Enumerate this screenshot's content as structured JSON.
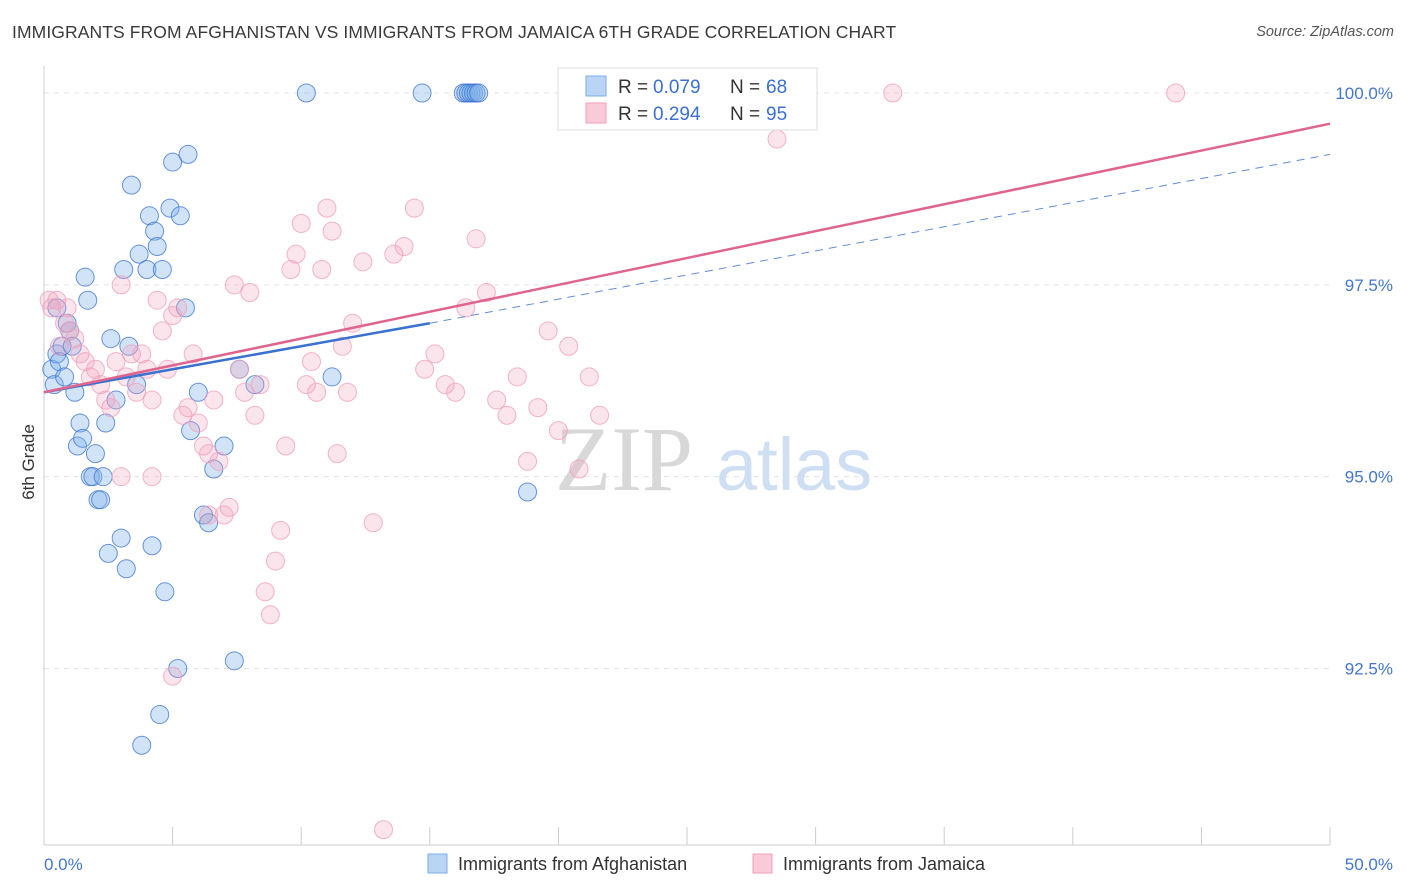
{
  "title": "IMMIGRANTS FROM AFGHANISTAN VS IMMIGRANTS FROM JAMAICA 6TH GRADE CORRELATION CHART",
  "source": "Source: ZipAtlas.com",
  "watermark": {
    "zip": "ZIP",
    "atlas": "atlas"
  },
  "colors": {
    "afghanistan": "#7aaee8",
    "afghanistan_line": "#3a72d0",
    "jamaica": "#f0a0bb",
    "jamaica_line": "#e0658e",
    "tick": "#4477cc",
    "grid": "#e3e3e3"
  },
  "legend": {
    "rows": [
      {
        "r_label": "R = ",
        "r_value": "0.079",
        "n_label": "N = ",
        "n_value": "68"
      },
      {
        "r_label": "R = ",
        "r_value": "0.294",
        "n_label": "N = ",
        "n_value": "95"
      }
    ]
  },
  "chart_data": {
    "type": "scatter",
    "xlabel": "",
    "ylabel": "6th Grade",
    "xlim": [
      0,
      50
    ],
    "ylim": [
      90.2,
      100.3
    ],
    "x_tick_labels": [
      "0.0%",
      "50.0%"
    ],
    "y_ticks": [
      92.5,
      95.0,
      97.5,
      100.0
    ],
    "y_tick_labels": [
      "92.5%",
      "95.0%",
      "97.5%",
      "100.0%"
    ],
    "grid": true,
    "series": [
      {
        "name": "Immigrants from Afghanistan",
        "r": 0.079,
        "n": 68,
        "trend": {
          "x0": 0,
          "y0": 96.1,
          "x1": 15,
          "y1": 97.0,
          "dash_to_x": 50,
          "dash_to_y": 99.2
        },
        "points": [
          [
            0.3,
            96.4
          ],
          [
            0.4,
            96.2
          ],
          [
            0.5,
            96.6
          ],
          [
            0.5,
            97.2
          ],
          [
            0.6,
            96.5
          ],
          [
            0.7,
            96.7
          ],
          [
            0.8,
            96.3
          ],
          [
            0.9,
            97.0
          ],
          [
            1.0,
            96.9
          ],
          [
            1.1,
            96.7
          ],
          [
            1.2,
            96.1
          ],
          [
            1.3,
            95.4
          ],
          [
            1.4,
            95.7
          ],
          [
            1.5,
            95.5
          ],
          [
            1.6,
            97.6
          ],
          [
            1.7,
            97.3
          ],
          [
            1.8,
            95.0
          ],
          [
            1.9,
            95.0
          ],
          [
            2.0,
            95.3
          ],
          [
            2.1,
            94.7
          ],
          [
            2.2,
            94.7
          ],
          [
            2.3,
            95.0
          ],
          [
            2.4,
            95.7
          ],
          [
            2.5,
            94.0
          ],
          [
            2.6,
            96.8
          ],
          [
            2.8,
            96.0
          ],
          [
            3.0,
            94.2
          ],
          [
            3.1,
            97.7
          ],
          [
            3.2,
            93.8
          ],
          [
            3.3,
            96.7
          ],
          [
            3.4,
            98.8
          ],
          [
            3.6,
            96.2
          ],
          [
            3.7,
            97.9
          ],
          [
            3.8,
            91.5
          ],
          [
            4.0,
            97.7
          ],
          [
            4.1,
            98.4
          ],
          [
            4.2,
            94.1
          ],
          [
            4.3,
            98.2
          ],
          [
            4.4,
            98.0
          ],
          [
            4.5,
            91.9
          ],
          [
            4.6,
            97.7
          ],
          [
            4.7,
            93.5
          ],
          [
            4.9,
            98.5
          ],
          [
            5.0,
            99.1
          ],
          [
            5.2,
            92.5
          ],
          [
            5.3,
            98.4
          ],
          [
            5.5,
            97.2
          ],
          [
            5.6,
            99.2
          ],
          [
            5.7,
            95.6
          ],
          [
            6.0,
            96.1
          ],
          [
            6.2,
            94.5
          ],
          [
            6.4,
            94.4
          ],
          [
            6.6,
            95.1
          ],
          [
            7.0,
            95.4
          ],
          [
            7.4,
            92.6
          ],
          [
            7.6,
            96.4
          ],
          [
            8.2,
            96.2
          ],
          [
            10.2,
            100.0
          ],
          [
            11.2,
            96.3
          ],
          [
            14.7,
            100.0
          ],
          [
            16.3,
            100.0
          ],
          [
            16.4,
            100.0
          ],
          [
            16.5,
            100.0
          ],
          [
            16.6,
            100.0
          ],
          [
            16.7,
            100.0
          ],
          [
            16.8,
            100.0
          ],
          [
            16.9,
            100.0
          ],
          [
            18.8,
            94.8
          ]
        ]
      },
      {
        "name": "Immigrants from Jamaica",
        "r": 0.294,
        "n": 95,
        "trend": {
          "x0": 0,
          "y0": 96.1,
          "x1": 50,
          "y1": 99.6
        },
        "points": [
          [
            0.2,
            97.3
          ],
          [
            0.3,
            97.2
          ],
          [
            0.5,
            97.3
          ],
          [
            0.6,
            96.7
          ],
          [
            0.8,
            97.0
          ],
          [
            0.9,
            97.2
          ],
          [
            1.0,
            96.9
          ],
          [
            1.2,
            96.8
          ],
          [
            1.4,
            96.6
          ],
          [
            1.6,
            96.5
          ],
          [
            1.8,
            96.3
          ],
          [
            2.0,
            96.4
          ],
          [
            2.2,
            96.2
          ],
          [
            2.4,
            96.0
          ],
          [
            2.6,
            95.9
          ],
          [
            2.8,
            96.5
          ],
          [
            3.0,
            97.5
          ],
          [
            3.2,
            96.3
          ],
          [
            3.4,
            96.6
          ],
          [
            3.6,
            96.1
          ],
          [
            3.8,
            96.6
          ],
          [
            4.0,
            96.4
          ],
          [
            4.2,
            96.0
          ],
          [
            4.4,
            97.3
          ],
          [
            4.6,
            96.9
          ],
          [
            4.8,
            96.4
          ],
          [
            5.0,
            97.1
          ],
          [
            5.2,
            97.2
          ],
          [
            5.4,
            95.8
          ],
          [
            5.6,
            95.9
          ],
          [
            5.8,
            96.6
          ],
          [
            6.0,
            95.7
          ],
          [
            6.2,
            95.4
          ],
          [
            6.4,
            95.3
          ],
          [
            6.6,
            96.0
          ],
          [
            6.8,
            95.2
          ],
          [
            7.0,
            94.5
          ],
          [
            7.2,
            94.6
          ],
          [
            7.4,
            97.5
          ],
          [
            7.6,
            96.4
          ],
          [
            7.8,
            96.1
          ],
          [
            8.0,
            97.4
          ],
          [
            8.2,
            95.8
          ],
          [
            8.4,
            96.2
          ],
          [
            8.6,
            93.5
          ],
          [
            8.8,
            93.2
          ],
          [
            9.0,
            93.9
          ],
          [
            9.2,
            94.3
          ],
          [
            9.4,
            95.4
          ],
          [
            9.6,
            97.7
          ],
          [
            9.8,
            97.9
          ],
          [
            10.0,
            98.3
          ],
          [
            10.2,
            96.2
          ],
          [
            10.4,
            96.5
          ],
          [
            10.6,
            96.1
          ],
          [
            10.8,
            97.7
          ],
          [
            11.0,
            98.5
          ],
          [
            11.2,
            98.2
          ],
          [
            11.4,
            95.3
          ],
          [
            11.6,
            96.7
          ],
          [
            11.8,
            96.1
          ],
          [
            12.0,
            97.0
          ],
          [
            12.4,
            97.8
          ],
          [
            12.8,
            94.4
          ],
          [
            13.2,
            90.4
          ],
          [
            13.6,
            97.9
          ],
          [
            14.0,
            98.0
          ],
          [
            14.4,
            98.5
          ],
          [
            14.8,
            96.4
          ],
          [
            15.2,
            96.6
          ],
          [
            15.6,
            96.2
          ],
          [
            16.0,
            96.1
          ],
          [
            16.4,
            97.2
          ],
          [
            16.8,
            98.1
          ],
          [
            17.2,
            97.4
          ],
          [
            17.6,
            96.0
          ],
          [
            18.0,
            95.8
          ],
          [
            18.4,
            96.3
          ],
          [
            18.8,
            95.2
          ],
          [
            19.2,
            95.9
          ],
          [
            19.6,
            96.9
          ],
          [
            20.0,
            95.6
          ],
          [
            20.4,
            96.7
          ],
          [
            20.8,
            95.1
          ],
          [
            21.2,
            96.3
          ],
          [
            21.6,
            95.8
          ],
          [
            4.2,
            95.0
          ],
          [
            5.0,
            92.4
          ],
          [
            6.4,
            94.5
          ],
          [
            24.0,
            100.0
          ],
          [
            28.0,
            100.0
          ],
          [
            33.0,
            100.0
          ],
          [
            28.5,
            99.4
          ],
          [
            44.0,
            100.0
          ],
          [
            3.0,
            95.0
          ]
        ]
      }
    ]
  }
}
